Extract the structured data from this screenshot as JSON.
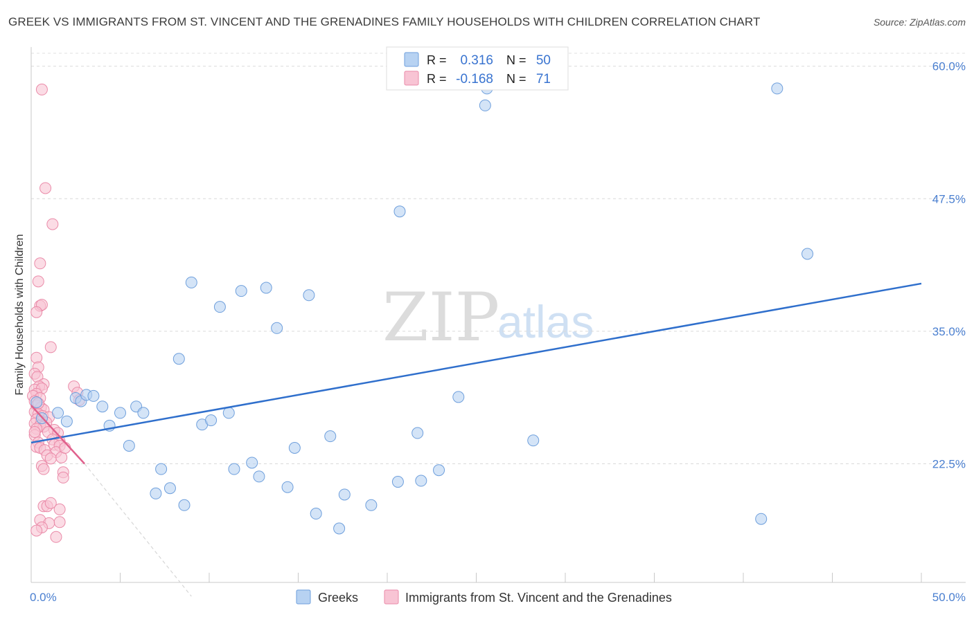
{
  "title": "GREEK VS IMMIGRANTS FROM ST. VINCENT AND THE GRENADINES FAMILY HOUSEHOLDS WITH CHILDREN CORRELATION CHART",
  "source": "Source: ZipAtlas.com",
  "watermark": {
    "zip": "ZIP",
    "atlas": "atlas"
  },
  "colors": {
    "blue_fill": "#b7d2f2",
    "blue_stroke": "#6e9fdc",
    "blue_line": "#2f6fcc",
    "pink_fill": "#f8c4d4",
    "pink_stroke": "#ea8aa8",
    "pink_line": "#e0608c",
    "tick_text": "#4a7fd0"
  },
  "legend": {
    "r_label": "R =",
    "n_label": "N =",
    "rows": [
      {
        "r": "0.316",
        "n": "50"
      },
      {
        "r": "-0.168",
        "n": "71"
      }
    ]
  },
  "chart_data": {
    "type": "scatter",
    "title": "GREEK VS IMMIGRANTS FROM ST. VINCENT AND THE GRENADINES FAMILY HOUSEHOLDS WITH CHILDREN CORRELATION CHART",
    "xlabel": "",
    "ylabel": "Family Households with Children",
    "xlim": [
      0,
      50
    ],
    "ylim": [
      10,
      62
    ],
    "x_tick_labels": [
      "0.0%",
      "50.0%"
    ],
    "y_ticks": [
      22.5,
      35.0,
      47.5,
      60.0
    ],
    "y_tick_labels": [
      "22.5%",
      "35.0%",
      "47.5%",
      "60.0%"
    ],
    "grid": true,
    "series": [
      {
        "name": "Greeks",
        "r": 0.316,
        "n": 50,
        "trend": {
          "x": [
            0,
            50
          ],
          "y": [
            24.5,
            39.5
          ]
        },
        "points": [
          [
            0.3,
            28.3
          ],
          [
            1.5,
            27.3
          ],
          [
            2.0,
            26.5
          ],
          [
            2.5,
            28.7
          ],
          [
            2.8,
            28.4
          ],
          [
            3.1,
            29.0
          ],
          [
            3.5,
            28.9
          ],
          [
            4.0,
            27.9
          ],
          [
            4.4,
            26.1
          ],
          [
            5.0,
            27.3
          ],
          [
            5.5,
            24.2
          ],
          [
            5.9,
            27.9
          ],
          [
            6.3,
            27.3
          ],
          [
            7.0,
            19.7
          ],
          [
            7.3,
            22.0
          ],
          [
            7.8,
            20.2
          ],
          [
            8.3,
            32.4
          ],
          [
            8.6,
            18.6
          ],
          [
            9.0,
            39.6
          ],
          [
            9.6,
            26.2
          ],
          [
            10.1,
            26.6
          ],
          [
            10.6,
            37.3
          ],
          [
            11.1,
            27.3
          ],
          [
            11.4,
            22.0
          ],
          [
            11.8,
            38.8
          ],
          [
            12.4,
            22.6
          ],
          [
            12.8,
            21.3
          ],
          [
            13.2,
            39.1
          ],
          [
            13.8,
            35.3
          ],
          [
            14.4,
            20.3
          ],
          [
            14.8,
            24.0
          ],
          [
            15.6,
            38.4
          ],
          [
            16.0,
            17.8
          ],
          [
            16.8,
            25.1
          ],
          [
            17.3,
            16.4
          ],
          [
            17.6,
            19.6
          ],
          [
            19.1,
            18.6
          ],
          [
            20.6,
            20.8
          ],
          [
            20.7,
            46.3
          ],
          [
            21.7,
            25.4
          ],
          [
            21.9,
            20.9
          ],
          [
            22.9,
            21.9
          ],
          [
            24.0,
            28.8
          ],
          [
            25.5,
            56.3
          ],
          [
            25.6,
            57.9
          ],
          [
            28.2,
            24.7
          ],
          [
            41.0,
            17.3
          ],
          [
            41.9,
            57.9
          ],
          [
            43.6,
            42.3
          ],
          [
            0.6,
            26.8
          ]
        ]
      },
      {
        "name": "Immigrants from St. Vincent and the Grenadines",
        "r": -0.168,
        "n": 71,
        "trend": {
          "x": [
            0,
            3.0
          ],
          "y": [
            28.0,
            22.5
          ]
        },
        "trend_extension": {
          "x": [
            3.0,
            9.0
          ],
          "y": [
            22.5,
            10.0
          ]
        },
        "points": [
          [
            0.6,
            57.8
          ],
          [
            0.8,
            48.5
          ],
          [
            1.2,
            45.1
          ],
          [
            0.5,
            41.4
          ],
          [
            0.4,
            39.7
          ],
          [
            0.5,
            37.4
          ],
          [
            0.6,
            37.5
          ],
          [
            0.3,
            36.8
          ],
          [
            1.1,
            33.5
          ],
          [
            0.3,
            32.5
          ],
          [
            0.4,
            31.6
          ],
          [
            0.2,
            31.0
          ],
          [
            0.35,
            30.7
          ],
          [
            0.7,
            30.0
          ],
          [
            0.45,
            29.8
          ],
          [
            0.2,
            29.5
          ],
          [
            0.6,
            29.6
          ],
          [
            2.4,
            29.8
          ],
          [
            2.6,
            29.2
          ],
          [
            0.3,
            29.1
          ],
          [
            0.1,
            28.9
          ],
          [
            0.5,
            28.7
          ],
          [
            2.7,
            28.5
          ],
          [
            0.2,
            28.4
          ],
          [
            0.3,
            28.0
          ],
          [
            0.55,
            27.8
          ],
          [
            0.7,
            27.6
          ],
          [
            0.2,
            27.4
          ],
          [
            0.4,
            27.2
          ],
          [
            0.65,
            27.0
          ],
          [
            1.0,
            26.9
          ],
          [
            0.3,
            26.7
          ],
          [
            0.55,
            26.5
          ],
          [
            0.2,
            26.3
          ],
          [
            0.85,
            26.4
          ],
          [
            0.5,
            26.1
          ],
          [
            0.7,
            26.0
          ],
          [
            0.3,
            25.8
          ],
          [
            1.3,
            25.7
          ],
          [
            0.95,
            25.5
          ],
          [
            1.5,
            25.4
          ],
          [
            0.2,
            25.2
          ],
          [
            1.2,
            24.8
          ],
          [
            1.6,
            24.6
          ],
          [
            0.4,
            24.5
          ],
          [
            1.3,
            24.3
          ],
          [
            1.6,
            24.2
          ],
          [
            0.3,
            24.1
          ],
          [
            0.5,
            24.0
          ],
          [
            0.75,
            23.8
          ],
          [
            1.4,
            23.6
          ],
          [
            0.9,
            23.3
          ],
          [
            1.1,
            23.0
          ],
          [
            1.7,
            23.1
          ],
          [
            0.6,
            22.3
          ],
          [
            0.7,
            22.0
          ],
          [
            1.8,
            21.7
          ],
          [
            1.8,
            21.2
          ],
          [
            0.7,
            18.5
          ],
          [
            0.9,
            18.5
          ],
          [
            1.1,
            18.8
          ],
          [
            1.6,
            18.2
          ],
          [
            0.5,
            17.2
          ],
          [
            1.6,
            17.0
          ],
          [
            1.0,
            16.9
          ],
          [
            0.6,
            16.5
          ],
          [
            0.3,
            16.2
          ],
          [
            1.4,
            15.6
          ],
          [
            0.4,
            28.2
          ],
          [
            1.9,
            24.0
          ],
          [
            0.2,
            25.5
          ]
        ]
      }
    ]
  }
}
